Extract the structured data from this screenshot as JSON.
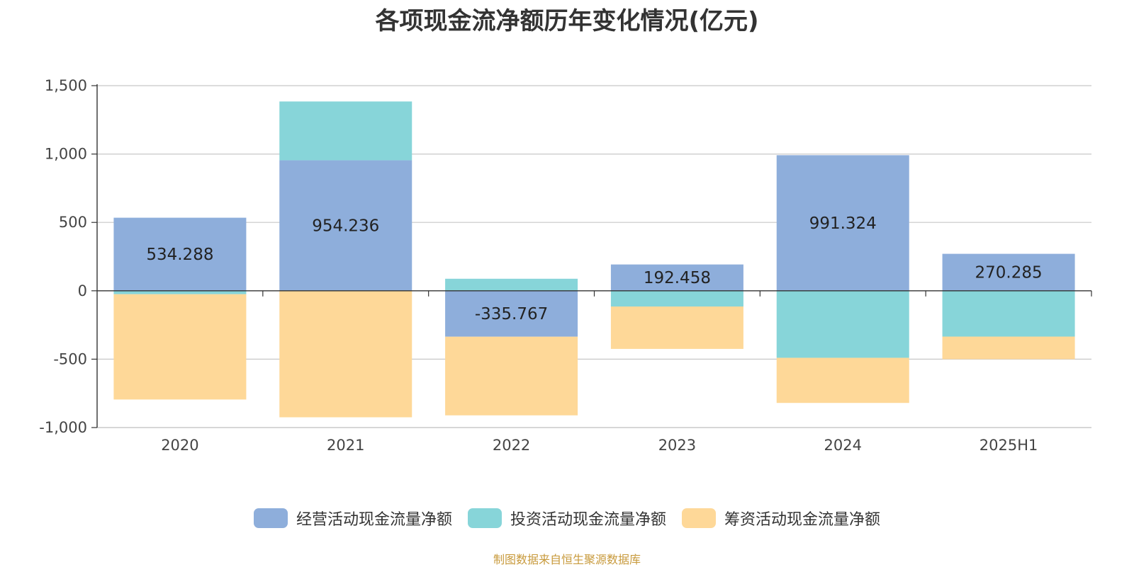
{
  "colors": {
    "operating": "#8eaedb",
    "investing": "#87d5d9",
    "financing": "#fed898",
    "source": "#c89a3c"
  },
  "chart_data": {
    "type": "bar",
    "stacked": true,
    "title": "各项现金流净额历年变化情况(亿元)",
    "xlabel": "",
    "ylabel": "",
    "categories": [
      "2020",
      "2021",
      "2022",
      "2023",
      "2024",
      "2025H1"
    ],
    "ylim": [
      -1000,
      1500
    ],
    "yticks": [
      1500,
      1000,
      500,
      0,
      -500,
      -1000
    ],
    "ytick_labels": [
      "1,500",
      "1,000",
      "500",
      "0",
      "-500",
      "-1,000"
    ],
    "grid": true,
    "legend_position": "bottom",
    "series": [
      {
        "name": "经营活动现金流量净额",
        "key": "operating",
        "values": [
          534.288,
          954.236,
          -335.767,
          192.458,
          991.324,
          270.285
        ],
        "labels": [
          "534.288",
          "954.236",
          "-335.767",
          "192.458",
          "991.324",
          "270.285"
        ]
      },
      {
        "name": "投资活动现金流量净额",
        "key": "investing",
        "values": [
          -25,
          430,
          88,
          -115,
          -490,
          -335
        ]
      },
      {
        "name": "筹资活动现金流量净额",
        "key": "financing",
        "values": [
          -770,
          -925,
          -575,
          -310,
          -330,
          -165
        ]
      }
    ]
  },
  "source_note": "制图数据来自恒生聚源数据库"
}
